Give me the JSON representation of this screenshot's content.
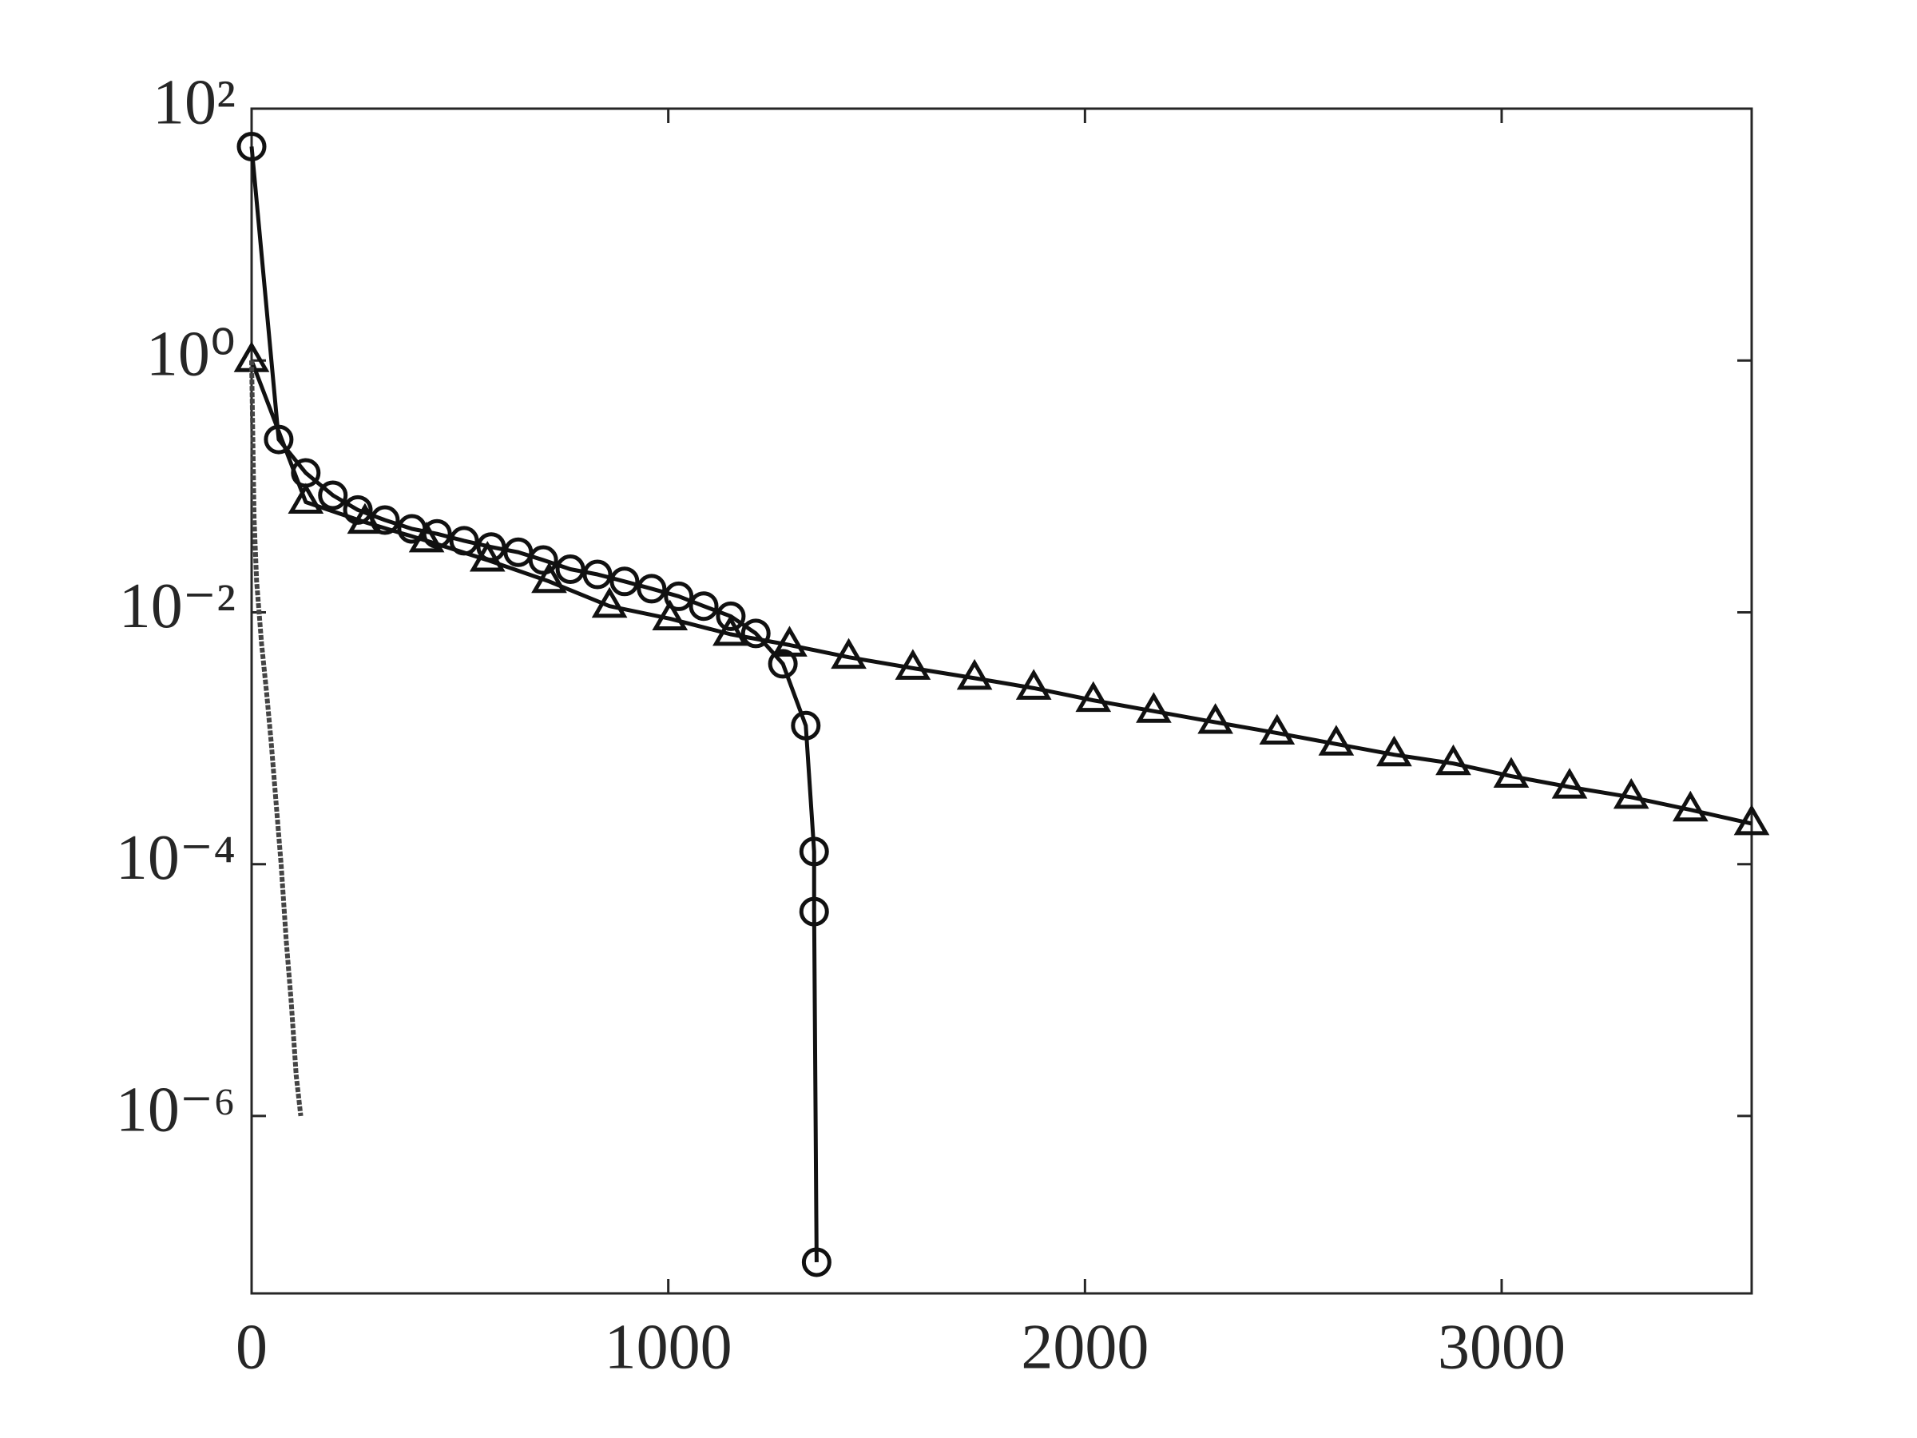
{
  "chart_data": {
    "type": "line",
    "log_y": true,
    "xlim": [
      0,
      3600
    ],
    "xticks": [
      0,
      1000,
      2000,
      3000
    ],
    "ylim": [
      3.9e-08,
      100
    ],
    "yticks": [
      {
        "value": 100,
        "label": "10²"
      },
      {
        "value": 1,
        "label": "10⁰"
      },
      {
        "value": 0.01,
        "label": "10⁻²"
      },
      {
        "value": 0.0001,
        "label": "10⁻⁴"
      },
      {
        "value": 1e-06,
        "label": "10⁻⁶"
      }
    ],
    "series": [
      {
        "color": "#111111",
        "marker": "circle",
        "x": [
          0,
          65,
          130,
          195,
          255,
          320,
          385,
          445,
          510,
          575,
          640,
          700,
          765,
          830,
          895,
          960,
          1025,
          1085,
          1150,
          1210,
          1275,
          1330,
          1350,
          1350,
          1356
        ],
        "values": [
          50,
          0.236,
          0.128,
          0.085,
          0.065,
          0.054,
          0.046,
          0.042,
          0.037,
          0.033,
          0.03,
          0.026,
          0.022,
          0.02,
          0.0176,
          0.0154,
          0.0134,
          0.0112,
          0.0093,
          0.0068,
          0.0039,
          0.00126,
          0.000126,
          4.2e-05,
          6.9e-08
        ]
      },
      {
        "color": "#111111",
        "marker": "triangle",
        "x": [
          0,
          130,
          272,
          420,
          566,
          714,
          859,
          1004,
          1149,
          1291,
          1433,
          1587,
          1735,
          1877,
          2020,
          2165,
          2313,
          2461,
          2603,
          2742,
          2884,
          3023,
          3163,
          3311,
          3453,
          3600
        ],
        "values": [
          1,
          0.075,
          0.052,
          0.037,
          0.026,
          0.0176,
          0.0112,
          0.0089,
          0.0067,
          0.0055,
          0.0044,
          0.0036,
          0.003,
          0.0025,
          0.002,
          0.00164,
          0.00134,
          0.0011,
          0.0009,
          0.00074,
          0.00063,
          0.0005,
          0.00041,
          0.00034,
          0.00027,
          0.00021
        ]
      },
      {
        "color": "#444444",
        "marker": "none",
        "dashed": true,
        "x": [
          0,
          6,
          12,
          24,
          36,
          47,
          59,
          71,
          83,
          95,
          107,
          118
        ],
        "values": [
          1,
          0.055,
          0.0177,
          0.0056,
          0.0023,
          0.00093,
          0.0003,
          9.8e-05,
          2.5e-05,
          8.1e-06,
          2.1e-06,
          1e-06
        ]
      }
    ]
  }
}
